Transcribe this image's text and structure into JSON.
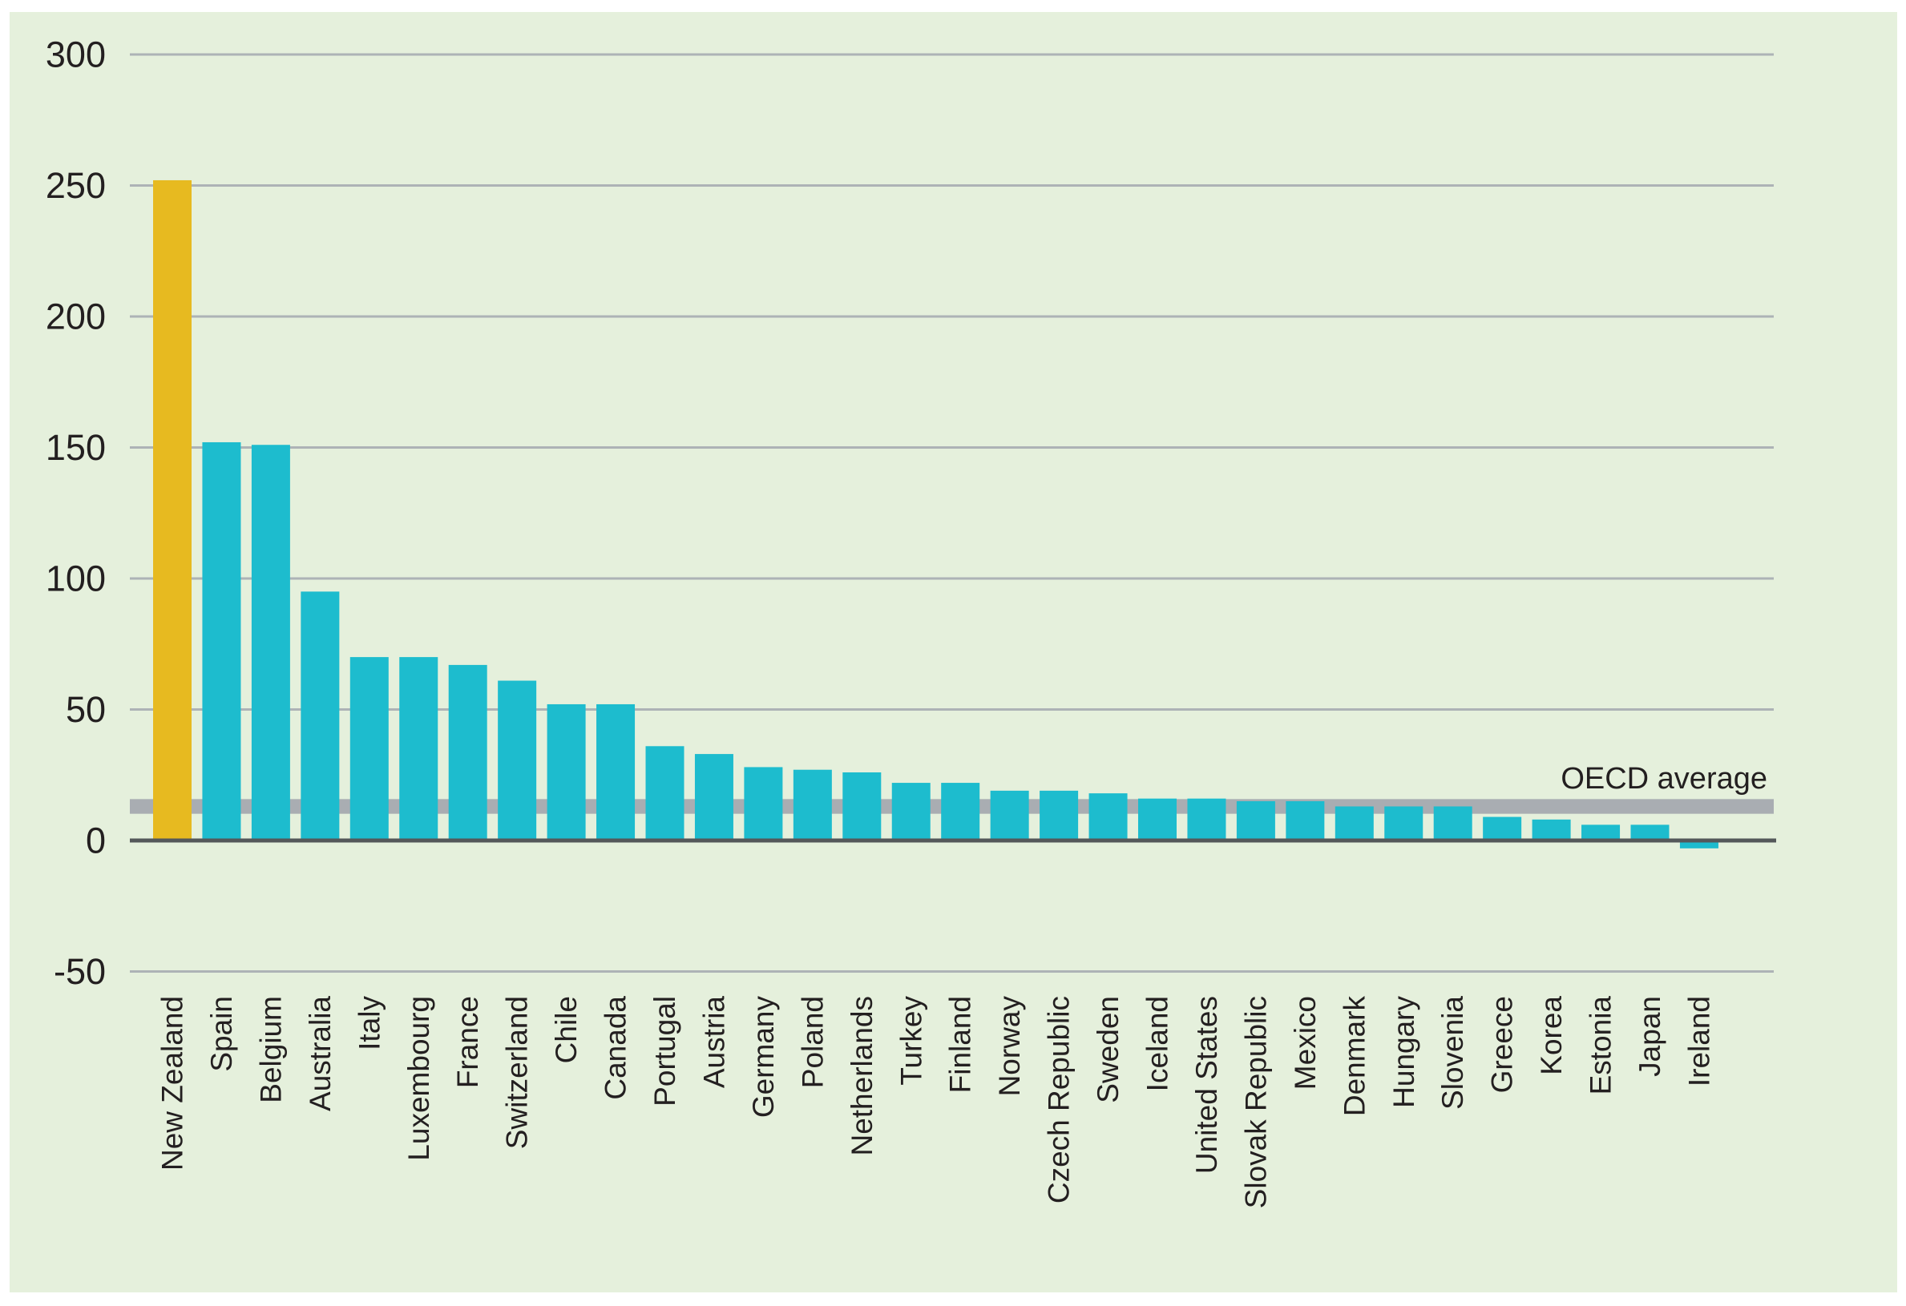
{
  "figure": {
    "annotation_label": "OECD average"
  },
  "chart_data": {
    "type": "bar",
    "title": "",
    "xlabel": "",
    "ylabel": "",
    "categories": [
      "New Zealand",
      "Spain",
      "Belgium",
      "Australia",
      "Italy",
      "Luxembourg",
      "France",
      "Switzerland",
      "Chile",
      "Canada",
      "Portugal",
      "Austria",
      "Germany",
      "Poland",
      "Netherlands",
      "Turkey",
      "Finland",
      "Norway",
      "Czech Republic",
      "Sweden",
      "Iceland",
      "United States",
      "Slovak Republic",
      "Mexico",
      "Denmark",
      "Hungary",
      "Slovenia",
      "Greece",
      "Korea",
      "Estonia",
      "Japan",
      "Ireland"
    ],
    "values": [
      252,
      152,
      151,
      95,
      70,
      70,
      67,
      61,
      52,
      52,
      36,
      33,
      28,
      27,
      26,
      22,
      22,
      19,
      19,
      18,
      16,
      16,
      15,
      15,
      13,
      13,
      13,
      9,
      8,
      6,
      6,
      -3
    ],
    "highlight_category": "New Zealand",
    "annotation": "OECD average",
    "oecd_average": 13,
    "oecd_band_thickness": 5.6,
    "ylim": [
      -50,
      300
    ],
    "yticks": [
      300,
      250,
      200,
      150,
      100,
      50,
      0,
      -50
    ],
    "grid": true,
    "legend": "none",
    "colors": {
      "bar": "#1dbcce",
      "highlight_bar": "#e7ba20",
      "background_panel": "#e5f0dc",
      "page": "#ffffff",
      "gridline": "#adb3b6",
      "axis_line": "#54585a",
      "oecd_band": "#a9adb2",
      "text": "#231f20"
    }
  }
}
